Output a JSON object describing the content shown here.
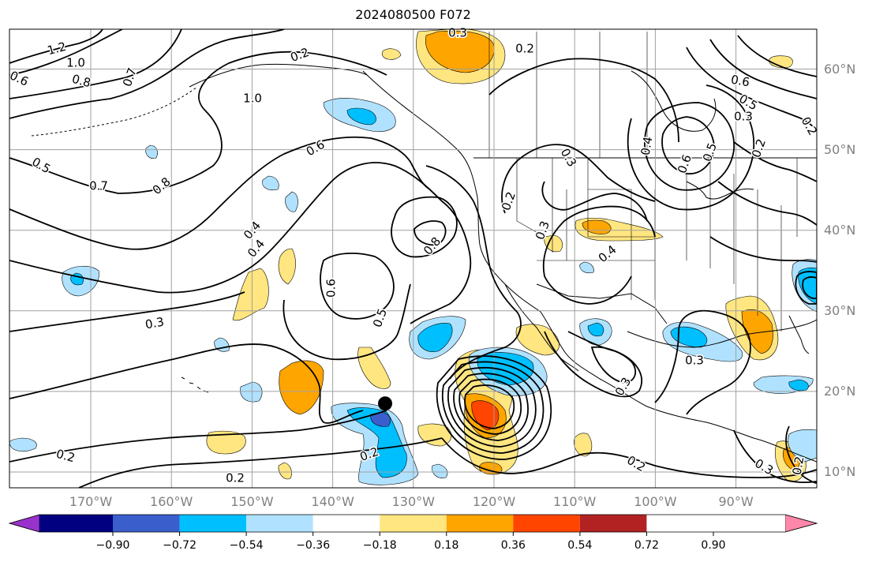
{
  "title": "2024080500 F072",
  "lat_labels": [
    {
      "text": "60°N",
      "lat": 60
    },
    {
      "text": "50°N",
      "lat": 50
    },
    {
      "text": "40°N",
      "lat": 40
    },
    {
      "text": "30°N",
      "lat": 30
    },
    {
      "text": "20°N",
      "lat": 20
    },
    {
      "text": "10°N",
      "lat": 10
    }
  ],
  "lon_labels": [
    {
      "text": "170°W",
      "lon": -170
    },
    {
      "text": "160°W",
      "lon": -160
    },
    {
      "text": "150°W",
      "lon": -150
    },
    {
      "text": "140°W",
      "lon": -140
    },
    {
      "text": "130°W",
      "lon": -130
    },
    {
      "text": "120°W",
      "lon": -120
    },
    {
      "text": "110°W",
      "lon": -110
    },
    {
      "text": "100°W",
      "lon": -100
    },
    {
      "text": "90°W",
      "lon": -90
    }
  ],
  "colorbar": {
    "ticks": [
      "−0.90",
      "−0.72",
      "−0.54",
      "−0.36",
      "−0.18",
      "0.18",
      "0.36",
      "0.54",
      "0.72",
      "0.90"
    ],
    "colors": [
      "#9932cc",
      "#000080",
      "#3a5fcd",
      "#00bfff",
      "#b0e2ff",
      "#ffffff",
      "#ffe680",
      "#ffa500",
      "#ff4500",
      "#b22222",
      "#ff88aa"
    ]
  },
  "contour_labels": [
    "1.2",
    "1.0",
    "0.6",
    "0.8",
    "0.7",
    "0.2",
    "1.0",
    "0.5",
    "0.7",
    "0.8",
    "0.6",
    "0.4",
    "0.3",
    "0.6",
    "0.5",
    "0.8",
    "0.2",
    "0.2",
    "0.4",
    "0.3",
    "0.2",
    "0.2",
    "0.3",
    "0.2",
    "0.4",
    "0.3",
    "0.6",
    "0.5",
    "0.5",
    "0.6",
    "0.3",
    "0.2",
    "0.4",
    "0.3",
    "0.3",
    "0.2",
    "0.2",
    "0.2",
    "0.3"
  ],
  "marker": {
    "lat": 18.5,
    "lon": -133.5,
    "color": "#000000"
  },
  "colors": {
    "grid": "#a0a0a0",
    "contour": "#000000",
    "axis_label": "#808080"
  }
}
